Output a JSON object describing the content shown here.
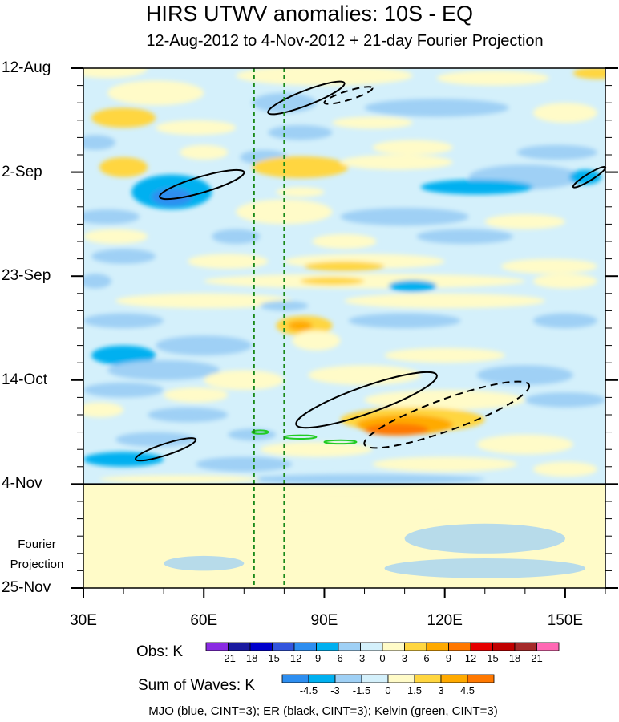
{
  "chart_data": {
    "type": "heatmap",
    "title": "HIRS UTWV anomalies: 10S - EQ",
    "subtitle": "12-Aug-2012 to 4-Nov-2012 + 21-day Fourier Projection",
    "x_ticks": [
      "30E",
      "60E",
      "90E",
      "120E",
      "150E"
    ],
    "x_tick_values": [
      30,
      60,
      90,
      120,
      150
    ],
    "xlim": [
      30,
      160
    ],
    "y_ticks": [
      "12-Aug",
      "2-Sep",
      "23-Sep",
      "14-Oct",
      "4-Nov",
      "25-Nov"
    ],
    "y_tick_days": [
      0,
      21,
      42,
      63,
      84,
      105
    ],
    "ylim_days": [
      0,
      105
    ],
    "observation_end_day": 84,
    "projection_label": [
      "Fourier",
      "Projection"
    ],
    "vertical_lines_lon": [
      72.5,
      80
    ],
    "obs_colorbar": {
      "label": "Obs: K",
      "levels": [
        "-21",
        "-18",
        "-15",
        "-12",
        "-9",
        "-6",
        "-3",
        "0",
        "3",
        "6",
        "9",
        "12",
        "15",
        "18",
        "21"
      ],
      "colors": [
        "#8a2be2",
        "#1a1aa0",
        "#0000cc",
        "#3355dd",
        "#2d8ef0",
        "#00b0f0",
        "#9fd0f5",
        "#d4f0fb",
        "#fffbc8",
        "#ffd640",
        "#ffaa00",
        "#ff7800",
        "#e60000",
        "#c00000",
        "#a52a2a",
        "#ff69b4"
      ]
    },
    "waves_colorbar": {
      "label": "Sum of Waves: K",
      "levels": [
        "-4.5",
        "-3",
        "-1.5",
        "0",
        "1.5",
        "3",
        "4.5"
      ],
      "colors": [
        "#2d8ef0",
        "#00b0f0",
        "#9fd0f5",
        "#d4f0fb",
        "#fffbc8",
        "#ffd640",
        "#ffaa00",
        "#ff7800"
      ]
    },
    "legend_note": "MJO (blue, CINT=3); ER (black, CINT=3); Kelvin (green, CINT=3)",
    "er_contours": [
      {
        "lon0": 76,
        "day0": 9,
        "lon1": 95,
        "day1": 3,
        "sign": "positive"
      },
      {
        "lon0": 49,
        "day0": 26,
        "lon1": 70,
        "day1": 21,
        "sign": "positive"
      },
      {
        "lon0": 90,
        "day0": 7,
        "lon1": 102,
        "day1": 4,
        "sign": "negative"
      },
      {
        "lon0": 152,
        "day0": 24,
        "lon1": 160,
        "day1": 20,
        "sign": "positive"
      },
      {
        "lon0": 83,
        "day0": 72,
        "lon1": 118,
        "day1": 62,
        "sign": "positive"
      },
      {
        "lon0": 100,
        "day0": 76,
        "lon1": 141,
        "day1": 64,
        "sign": "negative"
      },
      {
        "lon0": 43,
        "day0": 79,
        "lon1": 58,
        "day1": 75,
        "sign": "positive"
      }
    ],
    "kelvin_contours": [
      {
        "lon0": 72,
        "day0": 73.5,
        "lon1": 76,
        "day1": 73.5
      },
      {
        "lon0": 80,
        "day0": 74.5,
        "lon1": 88,
        "day1": 74.5
      },
      {
        "lon0": 90,
        "day0": 75.5,
        "lon1": 98,
        "day1": 75.5
      }
    ],
    "notable_features": [
      {
        "desc": "strong positive anomaly",
        "lon": 112,
        "day": 72,
        "value": 12
      },
      {
        "desc": "negative anomaly",
        "lon": 52,
        "day": 27,
        "value": -9
      },
      {
        "desc": "positive anomaly",
        "lon": 85,
        "day": 52,
        "value": 9
      }
    ]
  }
}
